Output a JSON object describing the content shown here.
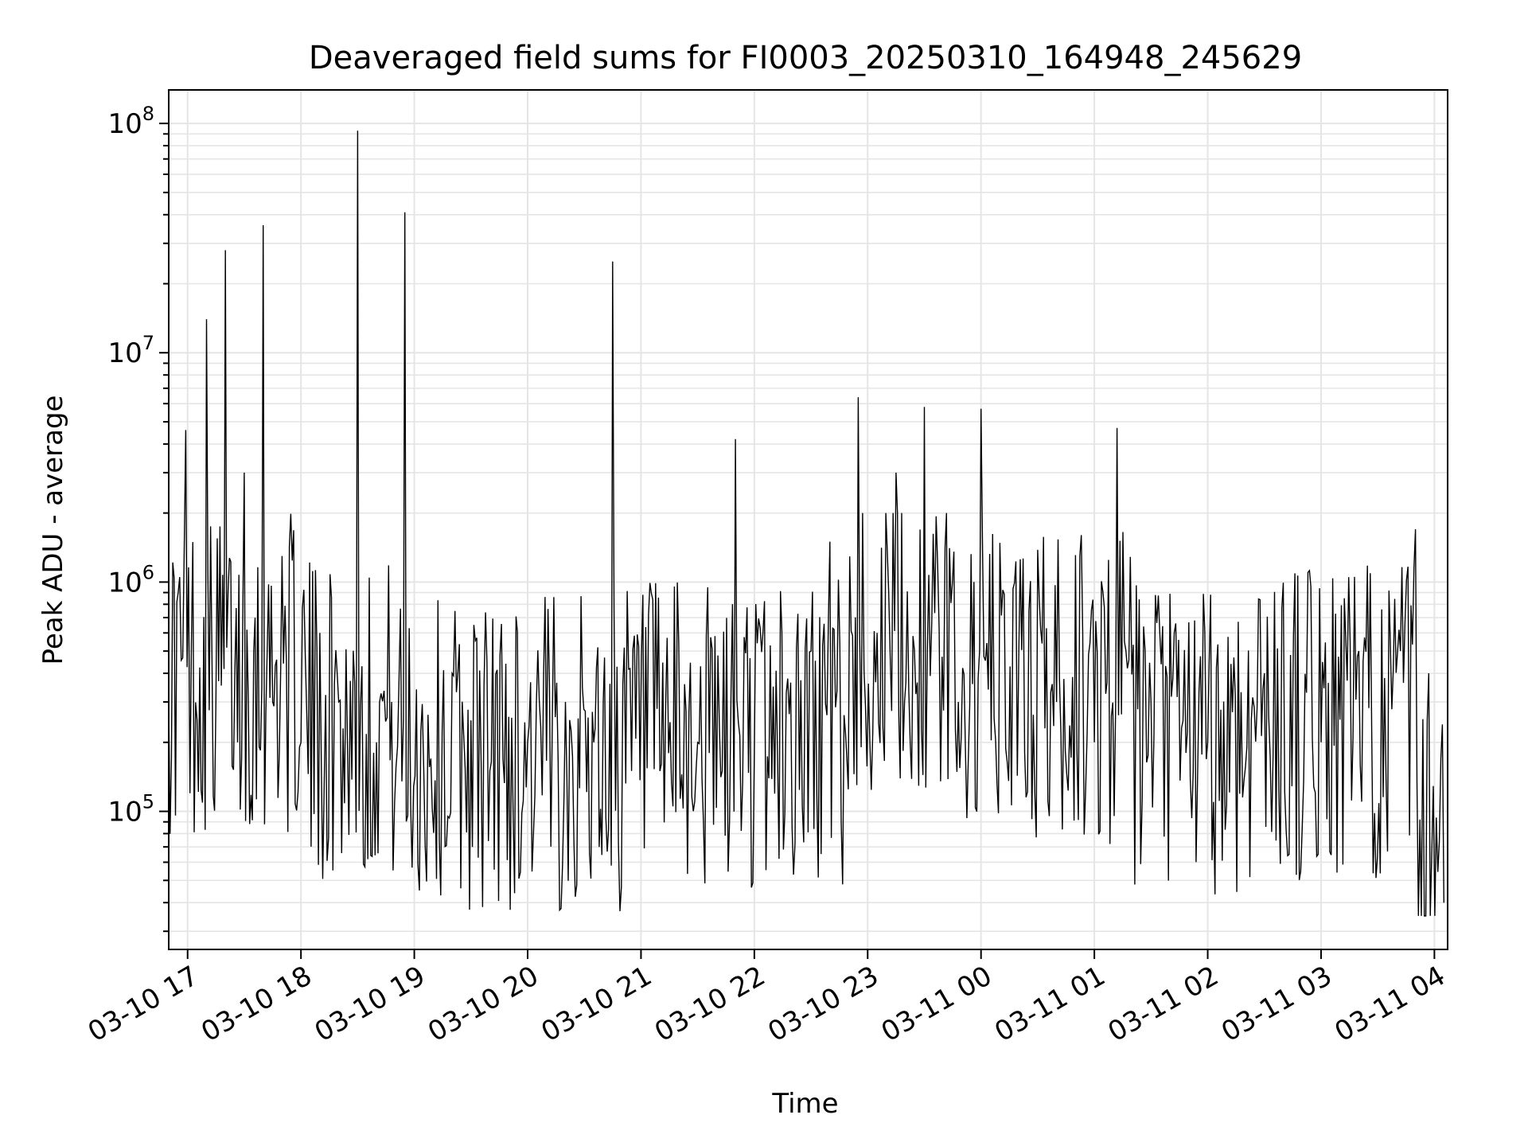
{
  "chart_data": {
    "type": "line",
    "title": "Deaveraged field sums for FI0003_20250310_164948_245629",
    "xlabel": "Time",
    "ylabel": "Peak ADU - average",
    "yscale": "log",
    "ylim": [
      25000,
      140000000
    ],
    "xlim": [
      "2025-03-10 16:50",
      "2025-03-11 04:07"
    ],
    "x_ticks": [
      "03-10 17",
      "03-10 18",
      "03-10 19",
      "03-10 20",
      "03-10 21",
      "03-10 22",
      "03-10 23",
      "03-11 00",
      "03-11 01",
      "03-11 02",
      "03-11 03",
      "03-11 04"
    ],
    "y_ticks": [
      {
        "base": "10",
        "exp": "5"
      },
      {
        "base": "10",
        "exp": "6"
      },
      {
        "base": "10",
        "exp": "7"
      },
      {
        "base": "10",
        "exp": "8"
      }
    ],
    "grid": true,
    "line_color": "#000000",
    "series": [
      {
        "x": [
          "2025-03-10 16:50",
          "2025-03-10 16:55",
          "2025-03-10 16:59",
          "2025-03-10 17:05",
          "2025-03-10 17:10",
          "2025-03-10 17:15",
          "2025-03-10 17:20",
          "2025-03-10 17:25",
          "2025-03-10 17:30",
          "2025-03-10 17:35",
          "2025-03-10 17:40",
          "2025-03-10 17:45",
          "2025-03-10 17:50",
          "2025-03-10 18:00",
          "2025-03-10 18:10",
          "2025-03-10 18:20",
          "2025-03-10 18:30",
          "2025-03-10 18:40",
          "2025-03-10 18:48",
          "2025-03-10 18:55",
          "2025-03-10 19:05",
          "2025-03-10 19:20",
          "2025-03-10 19:40",
          "2025-03-10 20:00",
          "2025-03-10 20:20",
          "2025-03-10 20:35",
          "2025-03-10 20:40",
          "2025-03-10 20:45",
          "2025-03-10 20:55",
          "2025-03-10 21:10",
          "2025-03-10 21:30",
          "2025-03-10 21:43",
          "2025-03-10 21:50",
          "2025-03-10 22:10",
          "2025-03-10 22:30",
          "2025-03-10 22:40",
          "2025-03-10 22:55",
          "2025-03-10 23:05",
          "2025-03-10 23:15",
          "2025-03-10 23:30",
          "2025-03-10 23:48",
          "2025-03-11 00:00",
          "2025-03-11 00:20",
          "2025-03-11 00:40",
          "2025-03-11 01:00",
          "2025-03-11 01:12",
          "2025-03-11 01:30",
          "2025-03-11 02:00",
          "2025-03-11 02:30",
          "2025-03-11 03:00",
          "2025-03-11 03:20",
          "2025-03-11 03:42",
          "2025-03-11 03:50",
          "2025-03-11 03:57",
          "2025-03-11 04:05"
        ],
        "y": [
          300000,
          900000,
          4600000,
          250000,
          14000000,
          300000,
          28000000,
          400000,
          3000000,
          500000,
          36000000,
          300000,
          1300000,
          200000,
          600000,
          300000,
          93000000,
          200000,
          300000,
          41000000,
          150000,
          400000,
          150000,
          200000,
          300000,
          200000,
          300000,
          25000000,
          150000,
          150000,
          200000,
          150000,
          4200000,
          350000,
          500000,
          1500000,
          6400000,
          600000,
          3000000,
          5800000,
          300000,
          5700000,
          500000,
          300000,
          200000,
          4700000,
          300000,
          200000,
          400000,
          200000,
          500000,
          500000,
          1700000,
          400000,
          40000
        ]
      }
    ]
  }
}
